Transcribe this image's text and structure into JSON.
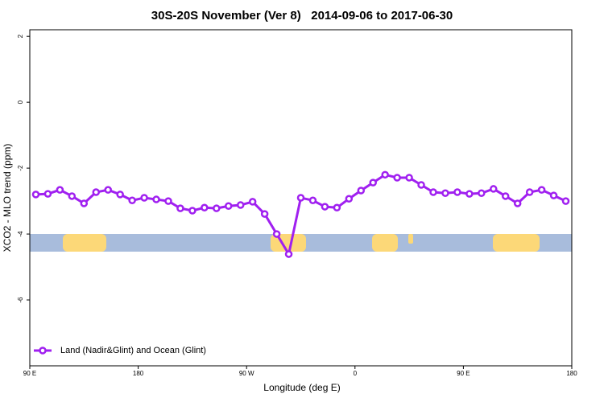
{
  "chart_data": {
    "type": "line",
    "title": "30S-20S November (Ver 8)   2014-09-06 to 2017-06-30",
    "x_label": "Longitude (deg E)",
    "y_label": "XCO2 - MLO trend (ppm)",
    "x": [
      95,
      105,
      115,
      125,
      135,
      145,
      155,
      165,
      175,
      185,
      195,
      205,
      215,
      225,
      235,
      245,
      255,
      265,
      275,
      285,
      295,
      305,
      315,
      325,
      335,
      345,
      355,
      365,
      375,
      385,
      395,
      405,
      415,
      425,
      435,
      445,
      455,
      465,
      475,
      485,
      495,
      505,
      515,
      525,
      535
    ],
    "series": [
      {
        "name": "Land (Nadir&Glint) and Ocean (Glint)",
        "color": "#a020f0",
        "values": [
          -2.8,
          -2.78,
          -2.66,
          -2.85,
          -3.07,
          -2.73,
          -2.66,
          -2.8,
          -2.98,
          -2.9,
          -2.95,
          -3.0,
          -3.22,
          -3.29,
          -3.2,
          -3.22,
          -3.15,
          -3.12,
          -3.02,
          -3.39,
          -4.0,
          -4.61,
          -2.9,
          -2.98,
          -3.17,
          -3.2,
          -2.93,
          -2.68,
          -2.44,
          -2.2,
          -2.29,
          -2.29,
          -2.51,
          -2.73,
          -2.76,
          -2.73,
          -2.78,
          -2.76,
          -2.63,
          -2.85,
          -3.07,
          -2.73,
          -2.66,
          -2.83,
          -3.0
        ]
      }
    ],
    "xlim": [
      90,
      540
    ],
    "xticks": [
      {
        "value": 90,
        "label": "90 E"
      },
      180,
      {
        "value": 270,
        "label": "90 W"
      },
      {
        "value": 360,
        "label": "0"
      },
      {
        "value": 450,
        "label": "90 E"
      },
      {
        "value": 540,
        "label": "180"
      }
    ],
    "ylim": [
      -8,
      2.2
    ],
    "yticks": [
      2,
      0,
      -2,
      -4,
      -6
    ],
    "legend": "bottom-left"
  }
}
